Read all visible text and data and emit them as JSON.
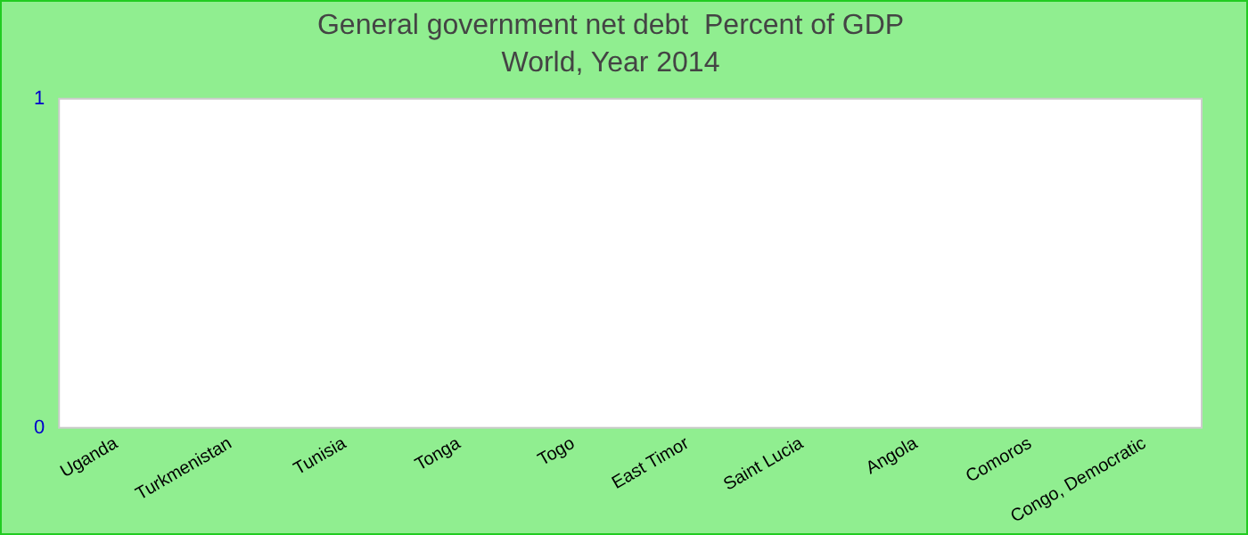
{
  "chart_data": {
    "type": "bar",
    "title": "General government net debt  Percent of GDP",
    "subtitle": "World, Year 2014",
    "categories": [
      "Uganda",
      "Turkmenistan",
      "Tunisia",
      "Tonga",
      "Togo",
      "East Timor",
      "Saint Lucia",
      "Angola",
      "Comoros",
      "Congo, Democratic"
    ],
    "values": [
      0,
      0,
      0,
      0,
      0,
      0,
      0,
      0,
      0,
      0
    ],
    "ylim": [
      0,
      1
    ],
    "yticks": [
      0,
      1
    ],
    "grid": false,
    "legend": false
  }
}
